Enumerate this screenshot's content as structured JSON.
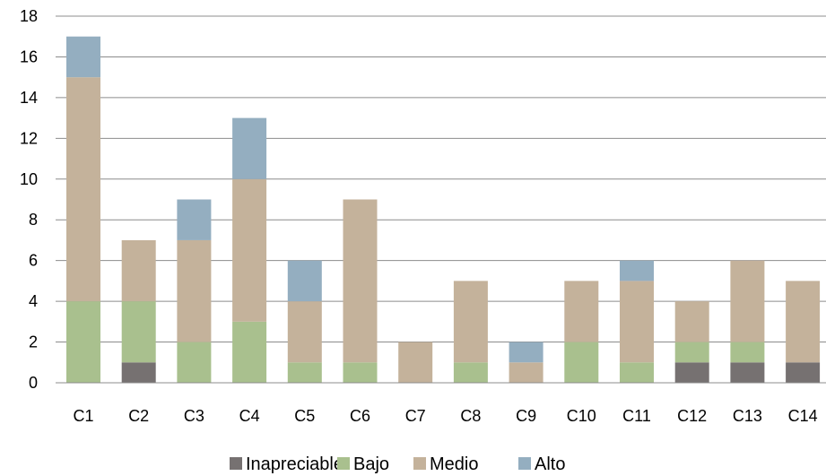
{
  "chart_data": {
    "type": "bar",
    "stacked": true,
    "categories": [
      "C1",
      "C2",
      "C3",
      "C4",
      "C5",
      "C6",
      "C7",
      "C8",
      "C9",
      "C10",
      "C11",
      "C12",
      "C13",
      "C14"
    ],
    "series": [
      {
        "name": "Inapreciable",
        "color": "#767171",
        "values": [
          0,
          1,
          0,
          0,
          0,
          0,
          0,
          0,
          0,
          0,
          0,
          1,
          1,
          1
        ]
      },
      {
        "name": "Bajo",
        "color": "#a9c08e",
        "values": [
          4,
          3,
          2,
          3,
          1,
          1,
          0,
          1,
          0,
          2,
          1,
          1,
          1,
          0
        ]
      },
      {
        "name": "Medio",
        "color": "#c4b29b",
        "values": [
          11,
          3,
          5,
          7,
          3,
          8,
          2,
          4,
          1,
          3,
          4,
          2,
          4,
          4
        ]
      },
      {
        "name": "Alto",
        "color": "#94aec0",
        "values": [
          2,
          0,
          2,
          3,
          2,
          0,
          0,
          0,
          1,
          0,
          1,
          0,
          0,
          0
        ]
      }
    ],
    "ylim": [
      0,
      18
    ],
    "yticks": [
      0,
      2,
      4,
      6,
      8,
      10,
      12,
      14,
      16,
      18
    ],
    "grid": true,
    "legend_position": "bottom",
    "title": "",
    "xlabel": "",
    "ylabel": ""
  }
}
